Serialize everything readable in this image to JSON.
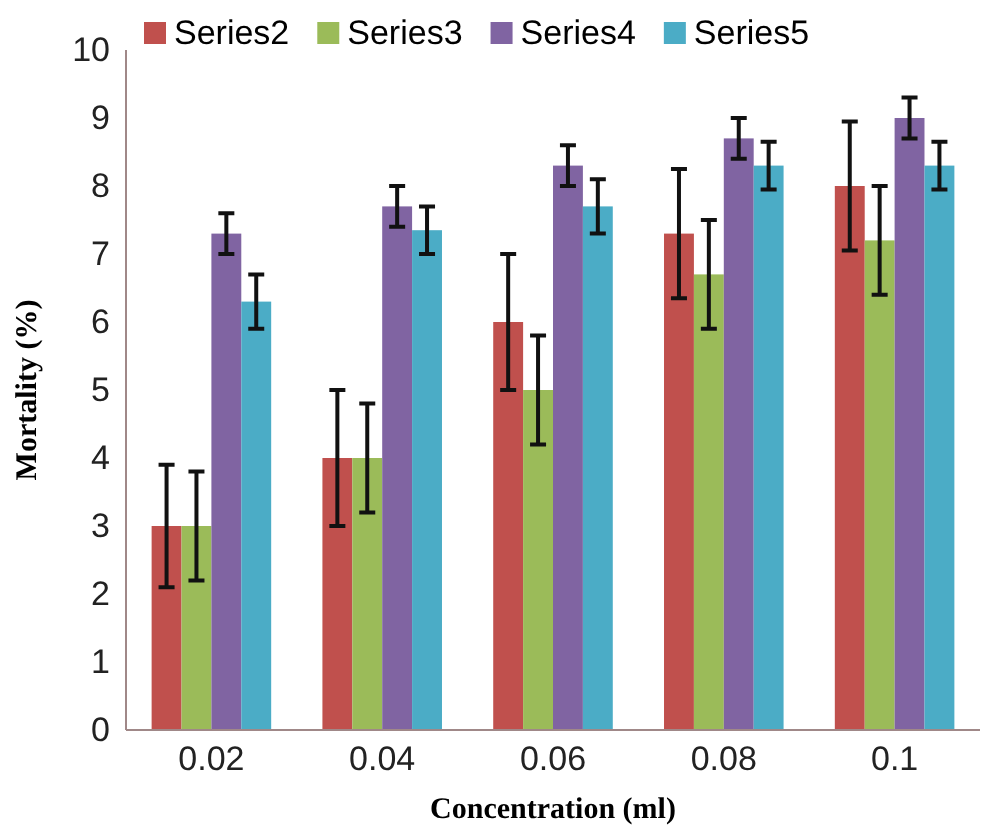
{
  "chart_data": {
    "type": "bar",
    "xlabel": "Concentration (ml)",
    "ylabel": "Mortality (%)",
    "categories": [
      "0.02",
      "0.04",
      "0.06",
      "0.08",
      "0.1"
    ],
    "series": [
      {
        "name": "Series2",
        "color": "#c0504d",
        "values": [
          3,
          4,
          6,
          7.3,
          8
        ],
        "errors": [
          0.9,
          1,
          1,
          0.95,
          0.95
        ]
      },
      {
        "name": "Series3",
        "color": "#9bbb59",
        "values": [
          3,
          4,
          5,
          6.7,
          7.2
        ],
        "errors": [
          0.8,
          0.8,
          0.8,
          0.8,
          0.8
        ]
      },
      {
        "name": "Series4",
        "color": "#8064a2",
        "values": [
          7.3,
          7.7,
          8.3,
          8.7,
          9
        ],
        "errors": [
          0.3,
          0.3,
          0.3,
          0.3,
          0.3
        ]
      },
      {
        "name": "Series5",
        "color": "#4bacc6",
        "values": [
          6.3,
          7.35,
          7.7,
          8.3,
          8.3
        ],
        "errors": [
          0.4,
          0.35,
          0.4,
          0.35,
          0.35
        ]
      }
    ],
    "ylim": [
      0,
      10
    ],
    "yticks": [
      0,
      1,
      2,
      3,
      4,
      5,
      6,
      7,
      8,
      9,
      10
    ],
    "grid": false,
    "legend": "top"
  }
}
